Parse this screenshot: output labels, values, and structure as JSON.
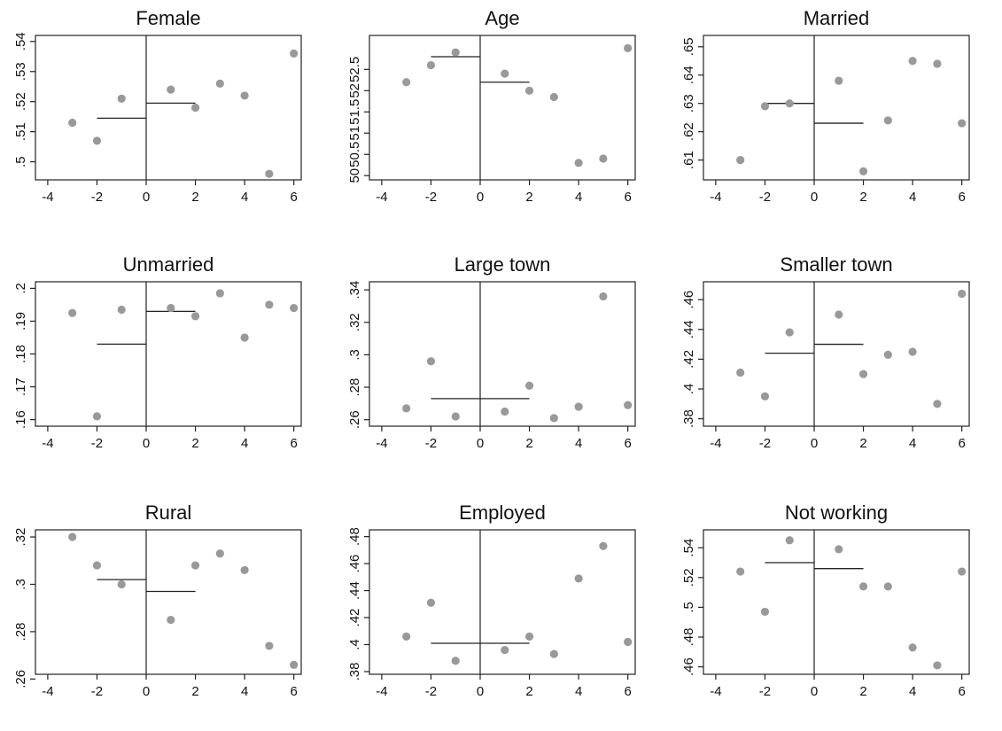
{
  "chart_data": [
    {
      "type": "scatter",
      "title": "Female",
      "x": [
        -3,
        -2,
        -1,
        1,
        2,
        3,
        4,
        5,
        6
      ],
      "y": [
        0.513,
        0.507,
        0.521,
        0.524,
        0.518,
        0.526,
        0.522,
        0.496,
        0.536
      ],
      "xlim": [
        -4.5,
        6.3
      ],
      "ylim": [
        0.494,
        0.542
      ],
      "xticks": [
        -4,
        -2,
        0,
        2,
        4,
        6
      ],
      "xtick_labels": [
        "-4",
        "-2",
        "0",
        "2",
        "4",
        "6"
      ],
      "yticks": [
        0.5,
        0.51,
        0.52,
        0.53,
        0.54
      ],
      "ytick_labels": [
        ".5",
        ".51",
        ".52",
        ".53",
        ".54"
      ],
      "fit_segments": [
        {
          "x": [
            -2,
            0
          ],
          "y": [
            0.5145,
            0.5145
          ]
        },
        {
          "x": [
            0,
            2
          ],
          "y": [
            0.5195,
            0.5195
          ]
        }
      ],
      "cutoff": 0
    },
    {
      "type": "scatter",
      "title": "Age",
      "x": [
        -3,
        -2,
        -1,
        1,
        2,
        3,
        4,
        5,
        6
      ],
      "y": [
        52.2,
        52.6,
        52.9,
        52.4,
        52.0,
        51.85,
        50.3,
        50.4,
        53.0
      ],
      "xlim": [
        -4.5,
        6.3
      ],
      "ylim": [
        49.9,
        53.3
      ],
      "xticks": [
        -4,
        -2,
        0,
        2,
        4,
        6
      ],
      "xtick_labels": [
        "-4",
        "-2",
        "0",
        "2",
        "4",
        "6"
      ],
      "yticks": [
        50,
        50.5,
        51,
        51.5,
        52,
        52.5
      ],
      "ytick_labels": [
        "50",
        "50.5",
        "51",
        "51.5",
        "52",
        "52.5"
      ],
      "fit_segments": [
        {
          "x": [
            -2,
            0
          ],
          "y": [
            52.8,
            52.8
          ]
        },
        {
          "x": [
            0,
            2
          ],
          "y": [
            52.2,
            52.2
          ]
        }
      ],
      "cutoff": 0
    },
    {
      "type": "scatter",
      "title": "Married",
      "x": [
        -3,
        -2,
        -1,
        1,
        2,
        3,
        4,
        5,
        6
      ],
      "y": [
        0.61,
        0.629,
        0.63,
        0.638,
        0.606,
        0.624,
        0.645,
        0.644,
        0.623
      ],
      "xlim": [
        -4.5,
        6.3
      ],
      "ylim": [
        0.603,
        0.654
      ],
      "xticks": [
        -4,
        -2,
        0,
        2,
        4,
        6
      ],
      "xtick_labels": [
        "-4",
        "-2",
        "0",
        "2",
        "4",
        "6"
      ],
      "yticks": [
        0.61,
        0.62,
        0.63,
        0.64,
        0.65
      ],
      "ytick_labels": [
        ".61",
        ".62",
        ".63",
        ".64",
        ".65"
      ],
      "fit_segments": [
        {
          "x": [
            -2,
            0
          ],
          "y": [
            0.63,
            0.63
          ]
        },
        {
          "x": [
            0,
            2
          ],
          "y": [
            0.623,
            0.623
          ]
        }
      ],
      "cutoff": 0
    },
    {
      "type": "scatter",
      "title": "Unmarried",
      "x": [
        -3,
        -2,
        -1,
        1,
        2,
        3,
        4,
        5,
        6
      ],
      "y": [
        0.1925,
        0.161,
        0.1935,
        0.194,
        0.1915,
        0.1985,
        0.185,
        0.195,
        0.194
      ],
      "xlim": [
        -4.5,
        6.3
      ],
      "ylim": [
        0.158,
        0.202
      ],
      "xticks": [
        -4,
        -2,
        0,
        2,
        4,
        6
      ],
      "xtick_labels": [
        "-4",
        "-2",
        "0",
        "2",
        "4",
        "6"
      ],
      "yticks": [
        0.16,
        0.17,
        0.18,
        0.19,
        0.2
      ],
      "ytick_labels": [
        ".16",
        ".17",
        ".18",
        ".19",
        ".2"
      ],
      "fit_segments": [
        {
          "x": [
            -2,
            0
          ],
          "y": [
            0.183,
            0.183
          ]
        },
        {
          "x": [
            0,
            2
          ],
          "y": [
            0.193,
            0.193
          ]
        }
      ],
      "cutoff": 0
    },
    {
      "type": "scatter",
      "title": "Large town",
      "x": [
        -3,
        -2,
        -1,
        1,
        2,
        3,
        4,
        5,
        6
      ],
      "y": [
        0.267,
        0.296,
        0.262,
        0.265,
        0.281,
        0.261,
        0.268,
        0.336,
        0.269
      ],
      "xlim": [
        -4.5,
        6.3
      ],
      "ylim": [
        0.256,
        0.345
      ],
      "xticks": [
        -4,
        -2,
        0,
        2,
        4,
        6
      ],
      "xtick_labels": [
        "-4",
        "-2",
        "0",
        "2",
        "4",
        "6"
      ],
      "yticks": [
        0.26,
        0.28,
        0.3,
        0.32,
        0.34
      ],
      "ytick_labels": [
        ".26",
        ".28",
        ".3",
        ".32",
        ".34"
      ],
      "fit_segments": [
        {
          "x": [
            -2,
            0
          ],
          "y": [
            0.273,
            0.273
          ]
        },
        {
          "x": [
            0,
            2
          ],
          "y": [
            0.273,
            0.273
          ]
        }
      ],
      "cutoff": 0
    },
    {
      "type": "scatter",
      "title": "Smaller town",
      "x": [
        -3,
        -2,
        -1,
        1,
        2,
        3,
        4,
        5,
        6
      ],
      "y": [
        0.411,
        0.395,
        0.438,
        0.45,
        0.41,
        0.423,
        0.425,
        0.39,
        0.464
      ],
      "xlim": [
        -4.5,
        6.3
      ],
      "ylim": [
        0.375,
        0.472
      ],
      "xticks": [
        -4,
        -2,
        0,
        2,
        4,
        6
      ],
      "xtick_labels": [
        "-4",
        "-2",
        "0",
        "2",
        "4",
        "6"
      ],
      "yticks": [
        0.38,
        0.4,
        0.42,
        0.44,
        0.46
      ],
      "ytick_labels": [
        ".38",
        ".4",
        ".42",
        ".44",
        ".46"
      ],
      "fit_segments": [
        {
          "x": [
            -2,
            0
          ],
          "y": [
            0.424,
            0.424
          ]
        },
        {
          "x": [
            0,
            2
          ],
          "y": [
            0.43,
            0.43
          ]
        }
      ],
      "cutoff": 0
    },
    {
      "type": "scatter",
      "title": "Rural",
      "x": [
        -3,
        -2,
        -1,
        1,
        2,
        3,
        4,
        5,
        6
      ],
      "y": [
        0.32,
        0.308,
        0.3,
        0.285,
        0.308,
        0.313,
        0.306,
        0.274,
        0.266
      ],
      "xlim": [
        -4.5,
        6.3
      ],
      "ylim": [
        0.262,
        0.323
      ],
      "xticks": [
        -4,
        -2,
        0,
        2,
        4,
        6
      ],
      "xtick_labels": [
        "-4",
        "-2",
        "0",
        "2",
        "4",
        "6"
      ],
      "yticks": [
        0.26,
        0.28,
        0.3,
        0.32
      ],
      "ytick_labels": [
        ".26",
        ".28",
        ".3",
        ".32"
      ],
      "fit_segments": [
        {
          "x": [
            -2,
            0
          ],
          "y": [
            0.302,
            0.302
          ]
        },
        {
          "x": [
            0,
            2
          ],
          "y": [
            0.297,
            0.297
          ]
        }
      ],
      "cutoff": 0
    },
    {
      "type": "scatter",
      "title": "Employed",
      "x": [
        -3,
        -2,
        -1,
        1,
        2,
        3,
        4,
        5,
        6
      ],
      "y": [
        0.406,
        0.431,
        0.388,
        0.396,
        0.406,
        0.393,
        0.449,
        0.473,
        0.402
      ],
      "xlim": [
        -4.5,
        6.3
      ],
      "ylim": [
        0.378,
        0.485
      ],
      "xticks": [
        -4,
        -2,
        0,
        2,
        4,
        6
      ],
      "xtick_labels": [
        "-4",
        "-2",
        "0",
        "2",
        "4",
        "6"
      ],
      "yticks": [
        0.38,
        0.4,
        0.42,
        0.44,
        0.46,
        0.48
      ],
      "ytick_labels": [
        ".38",
        ".4",
        ".42",
        ".44",
        ".46",
        ".48"
      ],
      "fit_segments": [
        {
          "x": [
            -2,
            0
          ],
          "y": [
            0.401,
            0.401
          ]
        },
        {
          "x": [
            0,
            2
          ],
          "y": [
            0.401,
            0.401
          ]
        }
      ],
      "cutoff": 0
    },
    {
      "type": "scatter",
      "title": "Not working",
      "x": [
        -3,
        -2,
        -1,
        1,
        2,
        3,
        4,
        5,
        6
      ],
      "y": [
        0.524,
        0.497,
        0.545,
        0.539,
        0.514,
        0.514,
        0.473,
        0.461,
        0.524
      ],
      "xlim": [
        -4.5,
        6.3
      ],
      "ylim": [
        0.455,
        0.552
      ],
      "xticks": [
        -4,
        -2,
        0,
        2,
        4,
        6
      ],
      "xtick_labels": [
        "-4",
        "-2",
        "0",
        "2",
        "4",
        "6"
      ],
      "yticks": [
        0.46,
        0.48,
        0.5,
        0.52,
        0.54
      ],
      "ytick_labels": [
        ".46",
        ".48",
        ".5",
        ".52",
        ".54"
      ],
      "fit_segments": [
        {
          "x": [
            -2,
            0
          ],
          "y": [
            0.53,
            0.53
          ]
        },
        {
          "x": [
            0,
            2
          ],
          "y": [
            0.526,
            0.526
          ]
        }
      ],
      "cutoff": 0
    }
  ],
  "colors": {
    "point": "#999999",
    "line": "#222222",
    "axis": "#222222",
    "background": "#ffffff"
  }
}
